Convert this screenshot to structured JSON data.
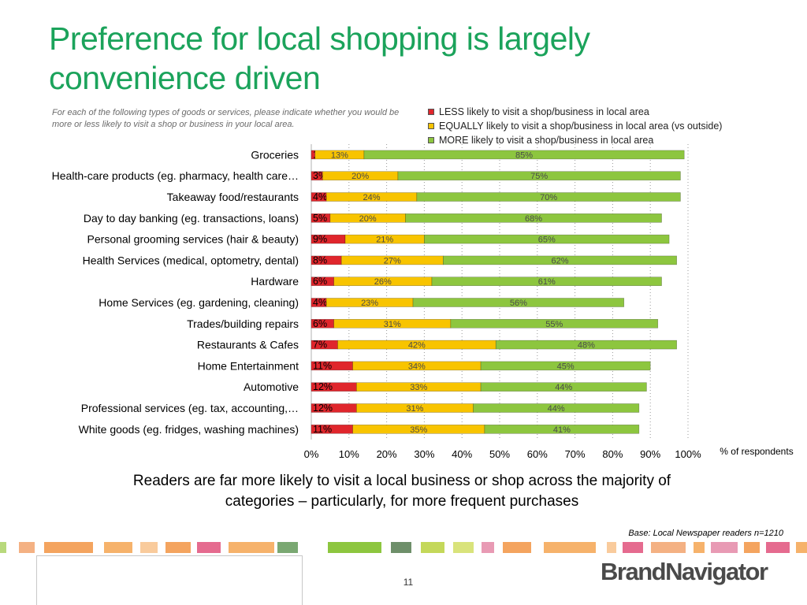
{
  "title": "Preference for local shopping is largely convenience driven",
  "question": "For each of the following types of goods or services, please indicate whether you would be more or less likely to visit a shop or business in your local area.",
  "unit_note": "% of respondents",
  "takeaway": "Readers are far more likely to visit a local business or shop across the majority of categories – particularly, for more frequent purchases",
  "base_note": "Base: Local Newspaper readers n=1210",
  "page_number": "11",
  "brand": "BrandNavigator",
  "colors": {
    "less": "#e0262c",
    "equally": "#f8c400",
    "more": "#8dc63f",
    "title": "#1ba35b"
  },
  "chart_data": {
    "type": "bar",
    "orientation": "horizontal",
    "stacked": true,
    "xlim": [
      0,
      100
    ],
    "x_ticks": [
      "0%",
      "10%",
      "20%",
      "30%",
      "40%",
      "50%",
      "60%",
      "70%",
      "80%",
      "90%",
      "100%"
    ],
    "grid": "vertical dotted",
    "legend_position": "top-right",
    "categories": [
      "Groceries",
      "Health-care products (eg. pharmacy, health care…",
      "Takeaway food/restaurants",
      "Day to day banking (eg. transactions, loans)",
      "Personal grooming services (hair & beauty)",
      "Health Services (medical, optometry,  dental)",
      "Hardware",
      "Home Services (eg. gardening, cleaning)",
      "Trades/building repairs",
      "Restaurants & Cafes",
      "Home Entertainment",
      "Automotive",
      "Professional services (eg. tax, accounting,…",
      "White goods (eg. fridges, washing machines)"
    ],
    "series": [
      {
        "name": "LESS likely to visit a shop/business in  local area",
        "color": "#e0262c",
        "values": [
          1,
          3,
          4,
          5,
          9,
          8,
          6,
          4,
          6,
          7,
          11,
          12,
          12,
          11
        ],
        "labels": [
          "1%",
          "3%",
          "4%",
          "5%",
          "9%",
          "8%",
          "6%",
          "4%",
          "6%",
          "7%",
          "11%",
          "12%",
          "12%",
          "11%"
        ]
      },
      {
        "name": "EQUALLY likely to visit a shop/business in  local area (vs outside)",
        "color": "#f8c400",
        "values": [
          13,
          20,
          24,
          20,
          21,
          27,
          26,
          23,
          31,
          42,
          34,
          33,
          31,
          35
        ],
        "labels": [
          "13%",
          "20%",
          "24%",
          "20%",
          "21%",
          "27%",
          "26%",
          "23%",
          "31%",
          "42%",
          "34%",
          "33%",
          "31%",
          "35%"
        ]
      },
      {
        "name": "MORE likely to visit a shop/business in  local area",
        "color": "#8dc63f",
        "values": [
          85,
          75,
          70,
          68,
          65,
          62,
          61,
          56,
          55,
          48,
          45,
          44,
          44,
          41
        ],
        "labels": [
          "85%",
          "75%",
          "70%",
          "68%",
          "65%",
          "62%",
          "61%",
          "56%",
          "55%",
          "48%",
          "45%",
          "44%",
          "44%",
          "41%"
        ]
      }
    ]
  }
}
